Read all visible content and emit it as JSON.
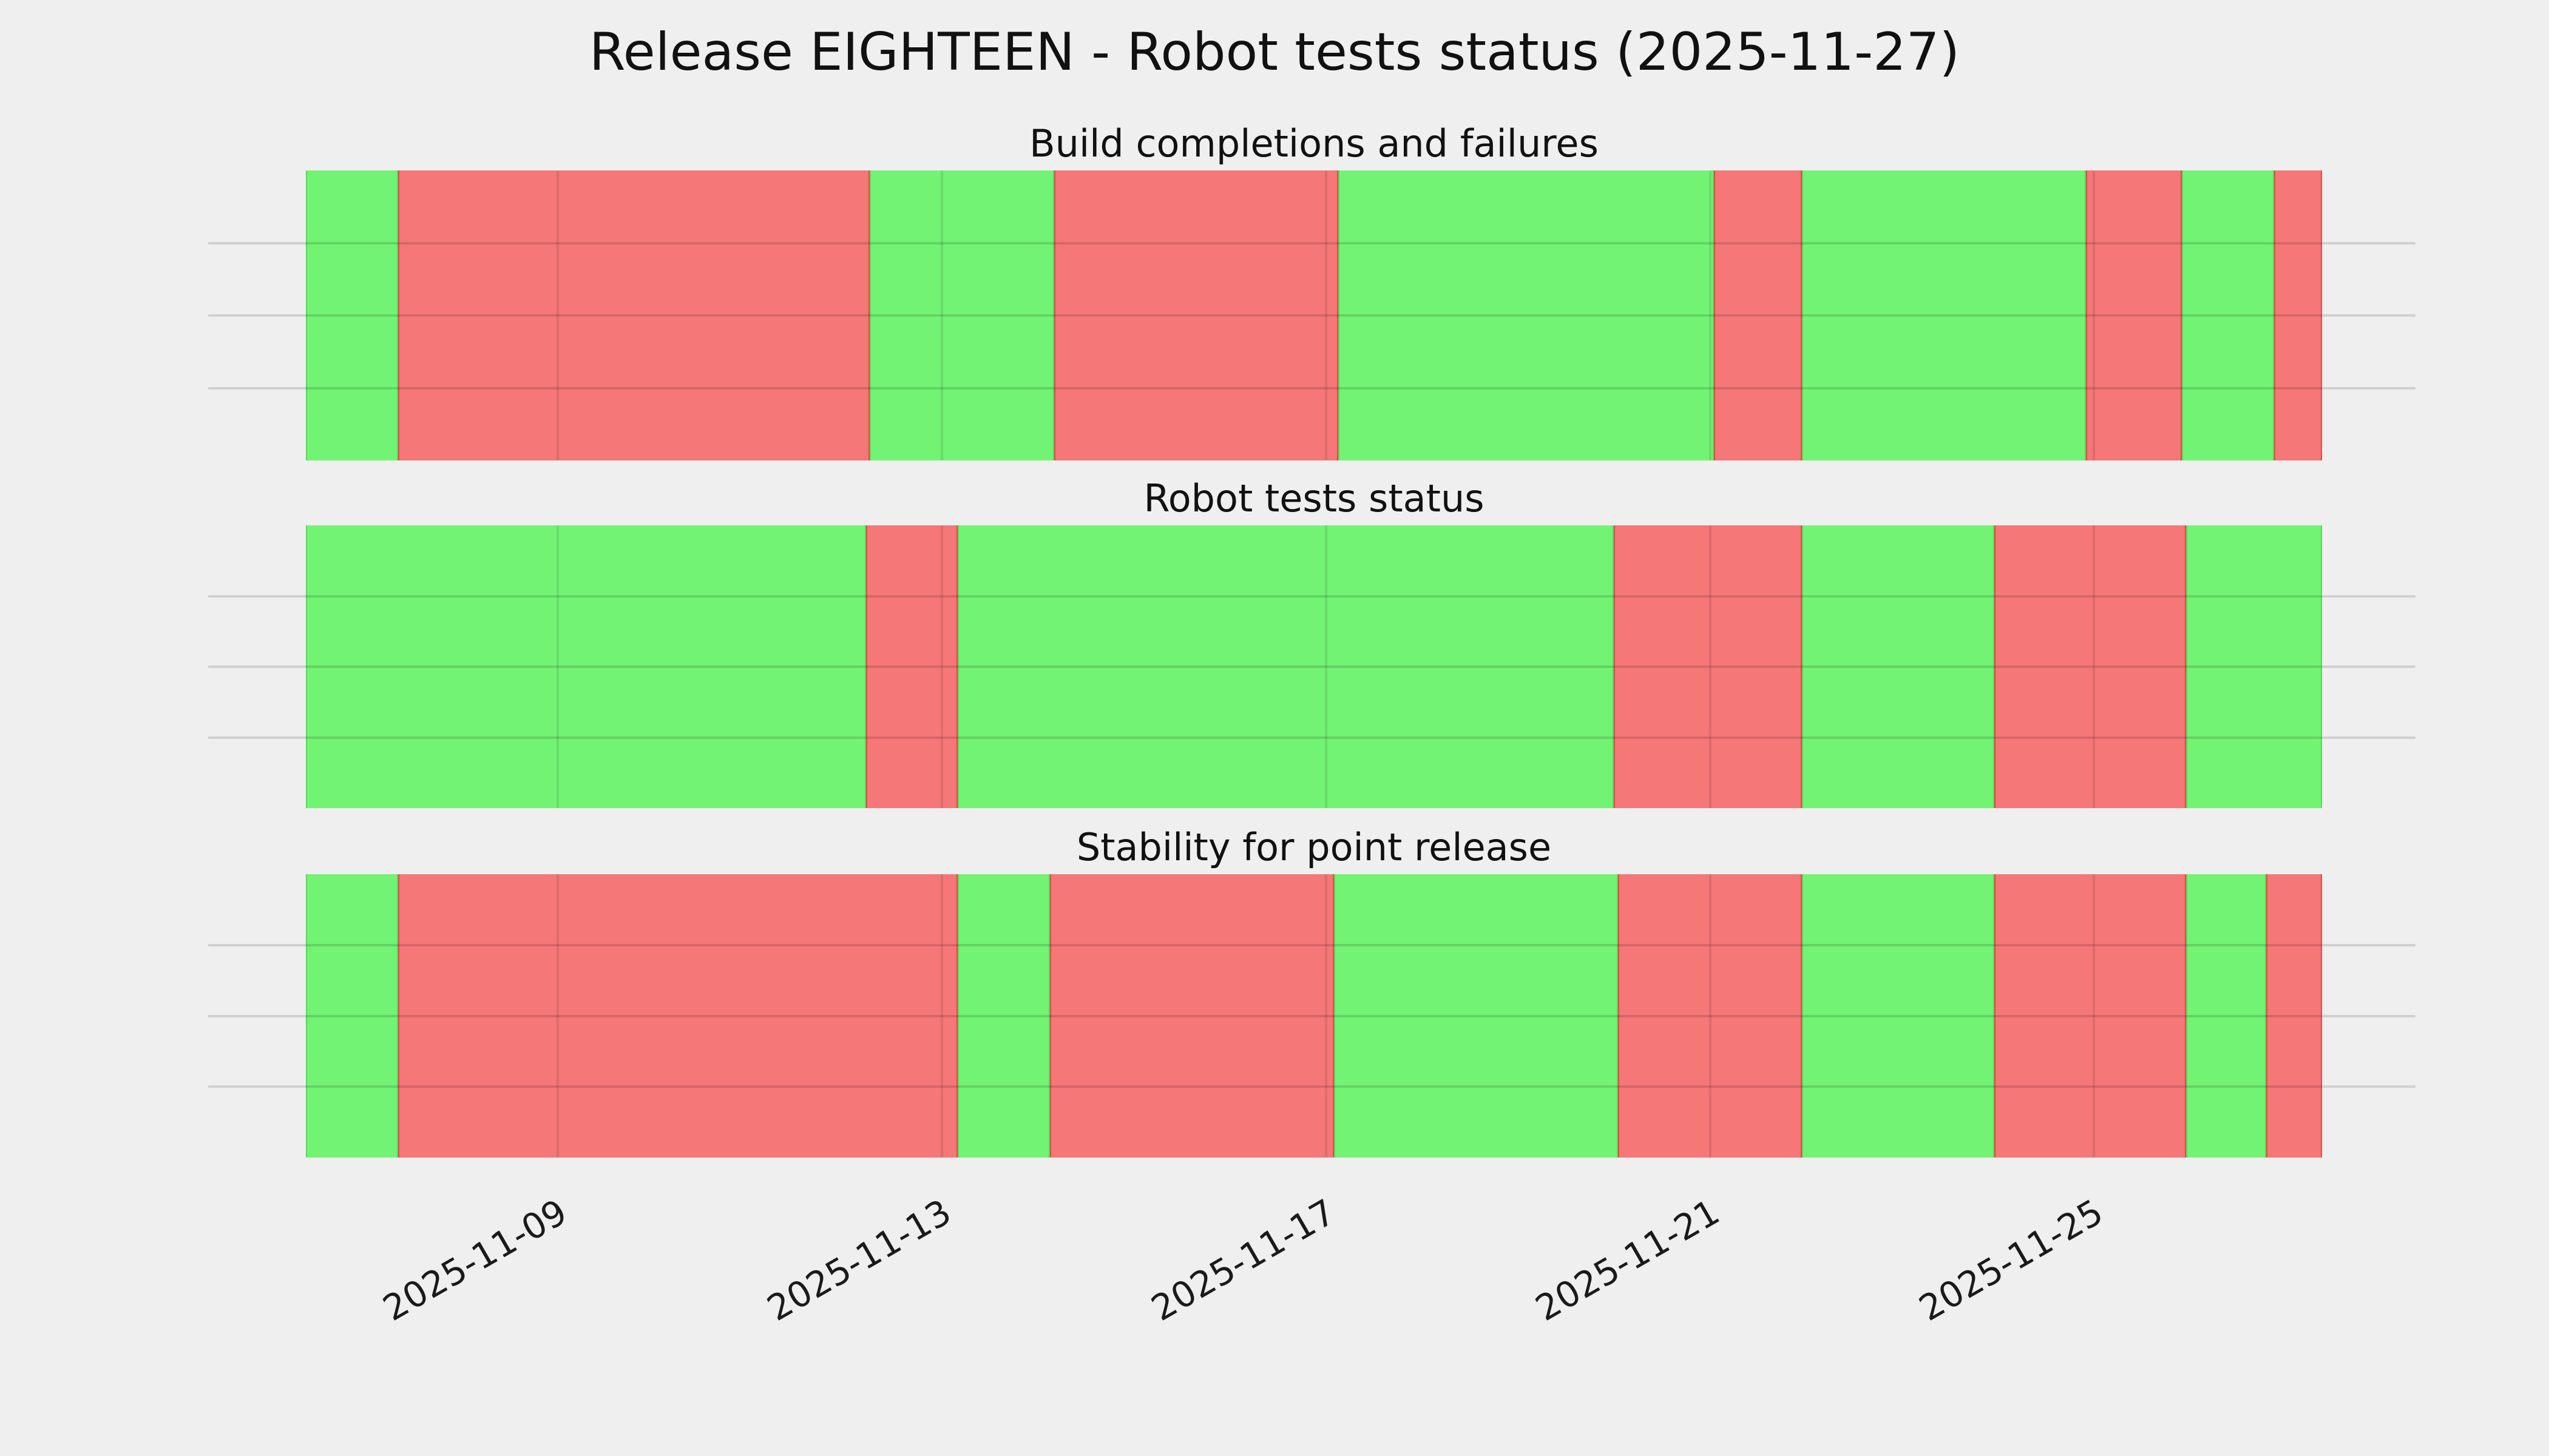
{
  "page": {
    "title": "Release EIGHTEEN - Robot tests status (2025-11-27)",
    "background": "#efefef"
  },
  "colors": {
    "ok": "#72f373",
    "fail": "#f57777",
    "background": "#efefef",
    "grid_horizontal": "rgba(0,0,0,0.13)",
    "grid_vertical": "rgba(0,0,0,0.09)",
    "title_text": "#111111",
    "tick_text": "#1a1a1a"
  },
  "axis": {
    "start": "2025-11-06T09:00:00",
    "end": "2025-11-27T09:00:00",
    "tick_labels": [
      "2025-11-09",
      "2025-11-13",
      "2025-11-17",
      "2025-11-21",
      "2025-11-25"
    ],
    "tick_times": [
      "2025-11-09T00:00:00",
      "2025-11-13T00:00:00",
      "2025-11-17T00:00:00",
      "2025-11-21T00:00:00",
      "2025-11-25T00:00:00"
    ],
    "grid": true
  },
  "chart_data": [
    {
      "type": "heatmap",
      "title": "Build completions and failures",
      "xlabel": "",
      "ylabel": "",
      "x_start": "2025-11-06T09:00:00",
      "x_end": "2025-11-27T09:00:00",
      "x_ticks": [
        "2025-11-09",
        "2025-11-13",
        "2025-11-17",
        "2025-11-21",
        "2025-11-25"
      ],
      "legend": "none",
      "segments": [
        {
          "status": "ok",
          "from": "2025-11-06T09:00:00",
          "to": "2025-11-07T08:00:00"
        },
        {
          "status": "fail",
          "from": "2025-11-07T08:00:00",
          "to": "2025-11-12T06:00:00"
        },
        {
          "status": "ok",
          "from": "2025-11-12T06:00:00",
          "to": "2025-11-14T04:00:00"
        },
        {
          "status": "fail",
          "from": "2025-11-14T04:00:00",
          "to": "2025-11-17T03:00:00"
        },
        {
          "status": "ok",
          "from": "2025-11-17T03:00:00",
          "to": "2025-11-21T01:00:00"
        },
        {
          "status": "fail",
          "from": "2025-11-21T01:00:00",
          "to": "2025-11-21T23:00:00"
        },
        {
          "status": "ok",
          "from": "2025-11-21T23:00:00",
          "to": "2025-11-24T22:00:00"
        },
        {
          "status": "fail",
          "from": "2025-11-24T22:00:00",
          "to": "2025-11-25T22:00:00"
        },
        {
          "status": "ok",
          "from": "2025-11-25T22:00:00",
          "to": "2025-11-26T21:00:00"
        },
        {
          "status": "fail",
          "from": "2025-11-26T21:00:00",
          "to": "2025-11-27T09:00:00"
        }
      ]
    },
    {
      "type": "heatmap",
      "title": "Robot tests status",
      "xlabel": "",
      "ylabel": "",
      "x_start": "2025-11-06T09:00:00",
      "x_end": "2025-11-27T09:00:00",
      "x_ticks": [
        "2025-11-09",
        "2025-11-13",
        "2025-11-17",
        "2025-11-21",
        "2025-11-25"
      ],
      "legend": "none",
      "segments": [
        {
          "status": "ok",
          "from": "2025-11-06T09:00:00",
          "to": "2025-11-12T05:00:00"
        },
        {
          "status": "fail",
          "from": "2025-11-12T05:00:00",
          "to": "2025-11-13T04:00:00"
        },
        {
          "status": "ok",
          "from": "2025-11-13T04:00:00",
          "to": "2025-11-20T00:00:00"
        },
        {
          "status": "fail",
          "from": "2025-11-20T00:00:00",
          "to": "2025-11-21T23:00:00"
        },
        {
          "status": "ok",
          "from": "2025-11-21T23:00:00",
          "to": "2025-11-23T23:00:00"
        },
        {
          "status": "fail",
          "from": "2025-11-23T23:00:00",
          "to": "2025-11-25T23:00:00"
        },
        {
          "status": "ok",
          "from": "2025-11-25T23:00:00",
          "to": "2025-11-27T09:00:00"
        }
      ]
    },
    {
      "type": "heatmap",
      "title": "Stability for point release",
      "xlabel": "",
      "ylabel": "",
      "x_start": "2025-11-06T09:00:00",
      "x_end": "2025-11-27T09:00:00",
      "x_ticks": [
        "2025-11-09",
        "2025-11-13",
        "2025-11-17",
        "2025-11-21",
        "2025-11-25"
      ],
      "legend": "none",
      "segments": [
        {
          "status": "ok",
          "from": "2025-11-06T09:00:00",
          "to": "2025-11-07T08:00:00"
        },
        {
          "status": "fail",
          "from": "2025-11-07T08:00:00",
          "to": "2025-11-13T04:00:00"
        },
        {
          "status": "ok",
          "from": "2025-11-13T04:00:00",
          "to": "2025-11-14T03:00:00"
        },
        {
          "status": "fail",
          "from": "2025-11-14T03:00:00",
          "to": "2025-11-17T02:00:00"
        },
        {
          "status": "ok",
          "from": "2025-11-17T02:00:00",
          "to": "2025-11-20T01:00:00"
        },
        {
          "status": "fail",
          "from": "2025-11-20T01:00:00",
          "to": "2025-11-21T23:00:00"
        },
        {
          "status": "ok",
          "from": "2025-11-21T23:00:00",
          "to": "2025-11-23T23:00:00"
        },
        {
          "status": "fail",
          "from": "2025-11-23T23:00:00",
          "to": "2025-11-25T23:00:00"
        },
        {
          "status": "ok",
          "from": "2025-11-25T23:00:00",
          "to": "2025-11-26T19:00:00"
        },
        {
          "status": "fail",
          "from": "2025-11-26T19:00:00",
          "to": "2025-11-27T09:00:00"
        }
      ]
    }
  ]
}
